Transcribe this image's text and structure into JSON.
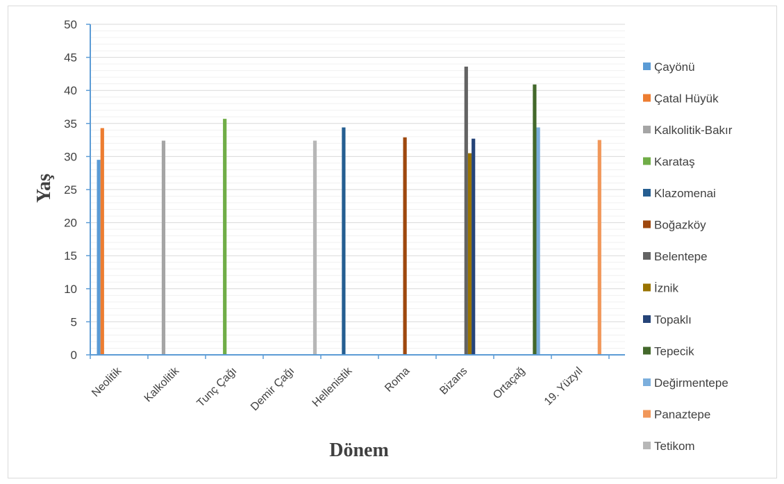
{
  "chart_data": {
    "type": "bar",
    "xlabel": "Dönem",
    "ylabel": "Yaş",
    "ylim": [
      0,
      50
    ],
    "yticks": [
      0,
      5,
      10,
      15,
      20,
      25,
      30,
      35,
      40,
      45,
      50
    ],
    "grid": true,
    "legend_position": "right",
    "categories": [
      "Neolitik",
      "Kalkolitik",
      "Tunç Çağı",
      "Demir Çağı",
      "Hellenistik",
      "Roma",
      "Bizans",
      "Ortaçağ",
      "19. Yüzyıl"
    ],
    "series": [
      {
        "name": "Çayönü",
        "color": "#5b9bd5",
        "values": [
          29.5,
          null,
          null,
          null,
          null,
          null,
          null,
          null,
          null
        ]
      },
      {
        "name": "Çatal Hüyük",
        "color": "#ed7d31",
        "values": [
          34.3,
          null,
          null,
          null,
          null,
          null,
          null,
          null,
          null
        ]
      },
      {
        "name": "Kalkolitik-Bakır",
        "color": "#a5a5a5",
        "values": [
          null,
          32.4,
          null,
          null,
          null,
          null,
          null,
          null,
          null
        ]
      },
      {
        "name": "Karataş",
        "color": "#70ad47",
        "values": [
          null,
          null,
          35.7,
          null,
          null,
          null,
          null,
          null,
          null
        ]
      },
      {
        "name": "Klazomenai",
        "color": "#255e91",
        "values": [
          null,
          null,
          null,
          null,
          34.4,
          null,
          null,
          null,
          null
        ]
      },
      {
        "name": "Boğazköy",
        "color": "#9e480e",
        "values": [
          null,
          null,
          null,
          null,
          null,
          32.9,
          null,
          null,
          null
        ]
      },
      {
        "name": "Belentepe",
        "color": "#636363",
        "values": [
          null,
          null,
          null,
          null,
          null,
          null,
          43.6,
          null,
          null
        ]
      },
      {
        "name": "İznik",
        "color": "#997300",
        "values": [
          null,
          null,
          null,
          null,
          null,
          null,
          30.5,
          null,
          null
        ]
      },
      {
        "name": "Topaklı",
        "color": "#264478",
        "values": [
          null,
          null,
          null,
          null,
          null,
          null,
          32.7,
          null,
          null
        ]
      },
      {
        "name": "Tepecik",
        "color": "#43682b",
        "values": [
          null,
          null,
          null,
          null,
          null,
          null,
          null,
          40.9,
          null
        ]
      },
      {
        "name": "Değirmentepe",
        "color": "#7cafdd",
        "values": [
          null,
          null,
          null,
          null,
          null,
          null,
          null,
          34.4,
          null
        ]
      },
      {
        "name": "Panaztepe",
        "color": "#f1975a",
        "values": [
          null,
          null,
          null,
          null,
          null,
          null,
          null,
          null,
          32.5
        ]
      },
      {
        "name": "Tetikom",
        "color": "#b7b7b7",
        "values": [
          null,
          null,
          null,
          32.4,
          null,
          null,
          null,
          null,
          null
        ]
      }
    ]
  }
}
